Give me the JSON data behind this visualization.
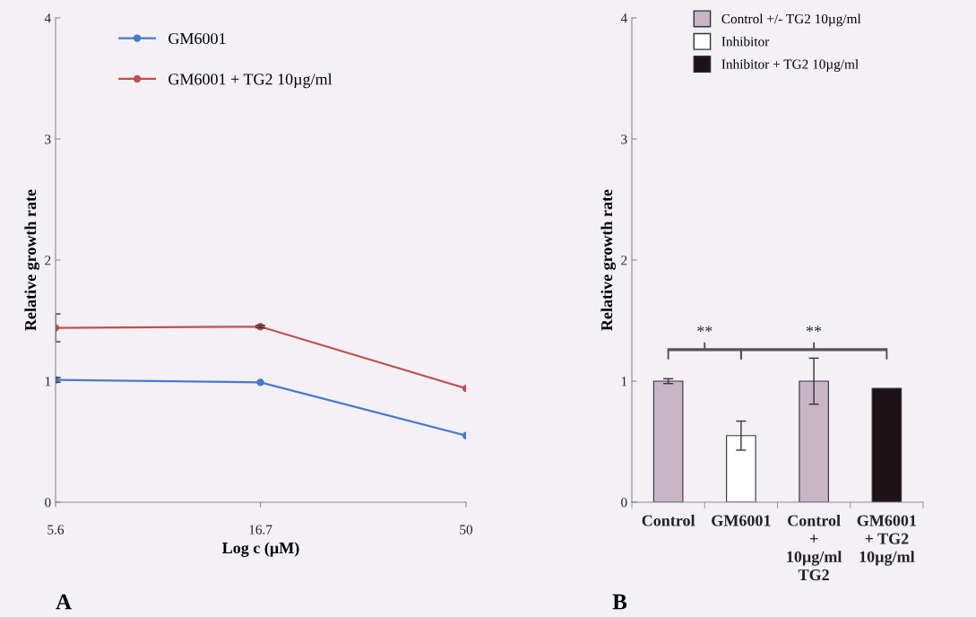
{
  "chart_data": [
    {
      "type": "line",
      "xlabel": "Log c (µM)",
      "ylabel": "Relative growth rate",
      "x": [
        5.6,
        16.7,
        50
      ],
      "log": "x",
      "xlim": [
        5.6,
        50
      ],
      "xticks": [
        5.6,
        16.7,
        50
      ],
      "series": [
        {
          "name": "GM6001",
          "color": "#4a78d0",
          "values": [
            1.01,
            0.99,
            0.55
          ],
          "errors": [
            0.02,
            null,
            null
          ]
        },
        {
          "name": "GM6001 + TG2 10µg/ml",
          "color": "#c0504d",
          "values": [
            1.44,
            1.45,
            0.94
          ],
          "errors": [
            0.115,
            0.01,
            null
          ]
        }
      ],
      "ylim": [
        0,
        4
      ],
      "yticks": [
        0,
        1,
        2,
        3,
        4
      ],
      "grid": false,
      "legend": "top left",
      "marker": "circle",
      "line_style": "solid",
      "annotations": [
        "A"
      ]
    },
    {
      "type": "bar",
      "ylabel": "Relative growth rate",
      "categories": [
        "Control",
        "GM6001",
        "Control\n+\n10µg/ml\nTG2",
        "GM6001\n+ TG2\n10µg/ml"
      ],
      "series": [
        {
          "name": "Control +/- TG2 10µg/ml",
          "color": "#c8b6c8",
          "values": [
            1.0,
            null,
            1.0,
            null
          ],
          "errors": [
            0.02,
            null,
            0.19,
            null
          ]
        },
        {
          "name": "Inhibitor",
          "color": "#ffffff",
          "values": [
            null,
            0.55,
            null,
            null
          ],
          "errors": [
            null,
            0.12,
            null,
            null
          ]
        },
        {
          "name": "Inhibitor + TG2 10µg/ml",
          "color": "#1e1216",
          "values": [
            null,
            null,
            null,
            0.94
          ]
        }
      ],
      "stacked": true,
      "ylim": [
        0,
        4
      ],
      "yticks": [
        0,
        1,
        2,
        3,
        4
      ],
      "grid": false,
      "legend": "top",
      "annotations": [
        "**",
        "**",
        "B"
      ]
    }
  ]
}
